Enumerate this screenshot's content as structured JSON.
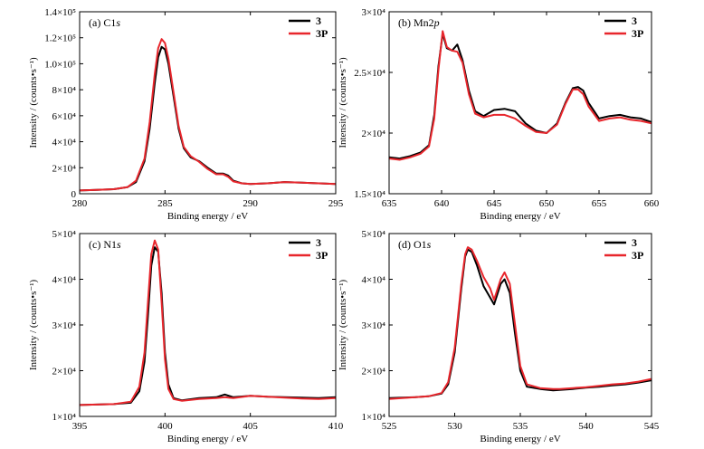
{
  "figure": {
    "legend_labels": [
      "3",
      "3P"
    ],
    "colors": {
      "3": "#000000",
      "3P": "#e8262c"
    }
  },
  "chart_data": [
    {
      "type": "line",
      "panel_label": "(a) C1",
      "panel_label_italic": "s",
      "xlabel": "Binding energy / eV",
      "ylabel": "Intensity / (counts•s⁻¹)",
      "xlim": [
        280,
        295
      ],
      "ylim": [
        0,
        140000
      ],
      "xticks": [
        280,
        285,
        290,
        295
      ],
      "yticks": [
        0,
        20000,
        40000,
        60000,
        80000,
        100000,
        120000,
        140000
      ],
      "ytick_labels": [
        "0",
        "2×10⁴",
        "4×10⁴",
        "6×10⁴",
        "8×10⁴",
        "1.0×10⁵",
        "1.2×10⁵",
        "1.4×10⁵"
      ],
      "legend_position": "top-right",
      "series": [
        {
          "name": "3",
          "color": "#000000",
          "x": [
            280,
            281,
            282,
            282.8,
            283.3,
            283.8,
            284.1,
            284.4,
            284.6,
            284.8,
            285.0,
            285.2,
            285.5,
            285.8,
            286.1,
            286.5,
            287.0,
            287.5,
            288.0,
            288.4,
            288.7,
            289.0,
            289.5,
            290,
            291,
            292,
            293,
            294,
            295
          ],
          "y": [
            2500,
            3000,
            3500,
            5000,
            9000,
            25000,
            50000,
            85000,
            105000,
            113000,
            111000,
            100000,
            75000,
            50000,
            35000,
            28000,
            25000,
            20000,
            15500,
            15500,
            14000,
            10000,
            8000,
            7500,
            8000,
            9000,
            8500,
            8000,
            7500
          ]
        },
        {
          "name": "3P",
          "color": "#e8262c",
          "x": [
            280,
            281,
            282,
            282.8,
            283.3,
            283.8,
            284.1,
            284.4,
            284.6,
            284.8,
            285.0,
            285.2,
            285.5,
            285.8,
            286.1,
            286.5,
            287.0,
            287.5,
            288.0,
            288.4,
            288.7,
            289.0,
            289.5,
            290,
            291,
            292,
            293,
            294,
            295
          ],
          "y": [
            2500,
            3000,
            3500,
            5000,
            10000,
            27000,
            55000,
            92000,
            112000,
            119000,
            116000,
            104000,
            78000,
            52000,
            36000,
            29000,
            24500,
            19000,
            15000,
            15000,
            13000,
            9500,
            8000,
            7500,
            8000,
            9000,
            8500,
            8000,
            7500
          ]
        }
      ]
    },
    {
      "type": "line",
      "panel_label": "(b) Mn2",
      "panel_label_italic": "p",
      "xlabel": "Binding energy / eV",
      "ylabel": "Intensity / (counts•s⁻¹)",
      "xlim": [
        635,
        660
      ],
      "ylim": [
        15000,
        30000
      ],
      "xticks": [
        635,
        640,
        645,
        650,
        655,
        660
      ],
      "yticks": [
        15000,
        20000,
        25000,
        30000
      ],
      "ytick_labels": [
        "1.5×10⁴",
        "2×10⁴",
        "2.5×10⁴",
        "3×10⁴"
      ],
      "legend_position": "top-right",
      "series": [
        {
          "name": "3",
          "color": "#000000",
          "x": [
            635,
            636,
            637,
            638,
            638.8,
            639.3,
            639.7,
            640.1,
            640.5,
            641.0,
            641.5,
            642.0,
            642.6,
            643.2,
            644.0,
            645.0,
            646.0,
            647.0,
            648.0,
            649.0,
            650.0,
            651.0,
            651.8,
            652.5,
            653.0,
            653.5,
            654.0,
            655.0,
            656.0,
            657.0,
            658.0,
            659.0,
            660.0
          ],
          "y": [
            18000,
            17900,
            18100,
            18400,
            19000,
            21500,
            25500,
            28200,
            27000,
            26800,
            27300,
            26000,
            23500,
            21800,
            21400,
            21900,
            22000,
            21800,
            20800,
            20200,
            20000,
            20800,
            22500,
            23700,
            23800,
            23500,
            22500,
            21200,
            21400,
            21500,
            21300,
            21200,
            20900
          ]
        },
        {
          "name": "3P",
          "color": "#e8262c",
          "x": [
            635,
            636,
            637,
            638,
            638.8,
            639.3,
            639.7,
            640.1,
            640.5,
            641.0,
            641.5,
            642.0,
            642.6,
            643.2,
            644.0,
            645.0,
            646.0,
            647.0,
            648.0,
            649.0,
            650.0,
            651.0,
            651.8,
            652.5,
            653.0,
            653.5,
            654.0,
            655.0,
            656.0,
            657.0,
            658.0,
            659.0,
            660.0
          ],
          "y": [
            17900,
            17800,
            18000,
            18300,
            18900,
            21200,
            25200,
            28400,
            27100,
            26800,
            26700,
            25800,
            23200,
            21600,
            21300,
            21500,
            21500,
            21200,
            20600,
            20100,
            20000,
            20700,
            22400,
            23600,
            23600,
            23200,
            22200,
            21000,
            21200,
            21300,
            21100,
            21000,
            20800
          ]
        }
      ]
    },
    {
      "type": "line",
      "panel_label": "(c) N1",
      "panel_label_italic": "s",
      "xlabel": "Binding energy / eV",
      "ylabel": "Intensity / (counts•s⁻¹)",
      "xlim": [
        395,
        410
      ],
      "ylim": [
        10000,
        50000
      ],
      "xticks": [
        395,
        400,
        405,
        410
      ],
      "yticks": [
        10000,
        20000,
        30000,
        40000,
        50000
      ],
      "ytick_labels": [
        "1×10⁴",
        "2×10⁴",
        "3×10⁴",
        "4×10⁴",
        "5×10⁴"
      ],
      "legend_position": "top-right",
      "series": [
        {
          "name": "3",
          "color": "#000000",
          "x": [
            395,
            396,
            397,
            398,
            398.5,
            398.8,
            399.0,
            399.2,
            399.4,
            399.6,
            399.8,
            400.0,
            400.2,
            400.5,
            401.0,
            402,
            403,
            403.5,
            404,
            405,
            406,
            407,
            408,
            409,
            410
          ],
          "y": [
            12500,
            12600,
            12700,
            13000,
            15500,
            22000,
            32000,
            43000,
            47000,
            46000,
            37000,
            24000,
            17000,
            14000,
            13500,
            14000,
            14200,
            14800,
            14200,
            14500,
            14300,
            14200,
            14100,
            14000,
            14200
          ]
        },
        {
          "name": "3P",
          "color": "#e8262c",
          "x": [
            395,
            396,
            397,
            398,
            398.5,
            398.8,
            399.0,
            399.2,
            399.4,
            399.6,
            399.8,
            400.0,
            400.2,
            400.5,
            401.0,
            402,
            403,
            403.5,
            404,
            405,
            406,
            407,
            408,
            409,
            410
          ],
          "y": [
            12500,
            12600,
            12700,
            13200,
            16500,
            24000,
            35000,
            45500,
            48500,
            46500,
            35000,
            22500,
            16000,
            13800,
            13400,
            13800,
            14000,
            14200,
            14000,
            14500,
            14300,
            14100,
            13900,
            13800,
            14000
          ]
        }
      ]
    },
    {
      "type": "line",
      "panel_label": "(d) O1",
      "panel_label_italic": "s",
      "xlabel": "Binding energy / eV",
      "ylabel": "Intensity / (counts•s⁻¹)",
      "xlim": [
        525,
        545
      ],
      "ylim": [
        10000,
        50000
      ],
      "xticks": [
        525,
        530,
        535,
        540,
        545
      ],
      "yticks": [
        10000,
        20000,
        30000,
        40000,
        50000
      ],
      "ytick_labels": [
        "1×10⁴",
        "2×10⁴",
        "3×10⁴",
        "4×10⁴",
        "5×10⁴"
      ],
      "legend_position": "top-right",
      "series": [
        {
          "name": "3",
          "color": "#000000",
          "x": [
            525,
            526,
            527,
            528,
            529,
            529.5,
            530.0,
            530.5,
            530.8,
            531.0,
            531.3,
            531.7,
            532.2,
            532.7,
            533.0,
            533.5,
            533.8,
            534.2,
            534.6,
            535.0,
            535.5,
            536.5,
            537.5,
            538,
            539,
            540,
            541,
            542,
            543,
            544,
            545
          ],
          "y": [
            14000,
            14100,
            14200,
            14400,
            15000,
            17000,
            24000,
            38000,
            45000,
            46500,
            46000,
            43000,
            38500,
            36000,
            34500,
            39000,
            40000,
            37000,
            28000,
            20000,
            16500,
            16000,
            15700,
            15800,
            16000,
            16300,
            16500,
            16800,
            17000,
            17400,
            17900
          ]
        },
        {
          "name": "3P",
          "color": "#e8262c",
          "x": [
            525,
            526,
            527,
            528,
            529,
            529.5,
            530.0,
            530.5,
            530.8,
            531.0,
            531.3,
            531.7,
            532.2,
            532.7,
            533.0,
            533.5,
            533.8,
            534.2,
            534.6,
            535.0,
            535.5,
            536.5,
            537.5,
            538,
            539,
            540,
            541,
            542,
            543,
            544,
            545
          ],
          "y": [
            13800,
            14000,
            14200,
            14400,
            15100,
            17500,
            25000,
            39000,
            45500,
            47000,
            46500,
            44000,
            40500,
            38000,
            35500,
            40000,
            41500,
            39000,
            30000,
            21000,
            17000,
            16200,
            16000,
            16000,
            16200,
            16400,
            16700,
            17000,
            17200,
            17600,
            18200
          ]
        }
      ]
    }
  ]
}
